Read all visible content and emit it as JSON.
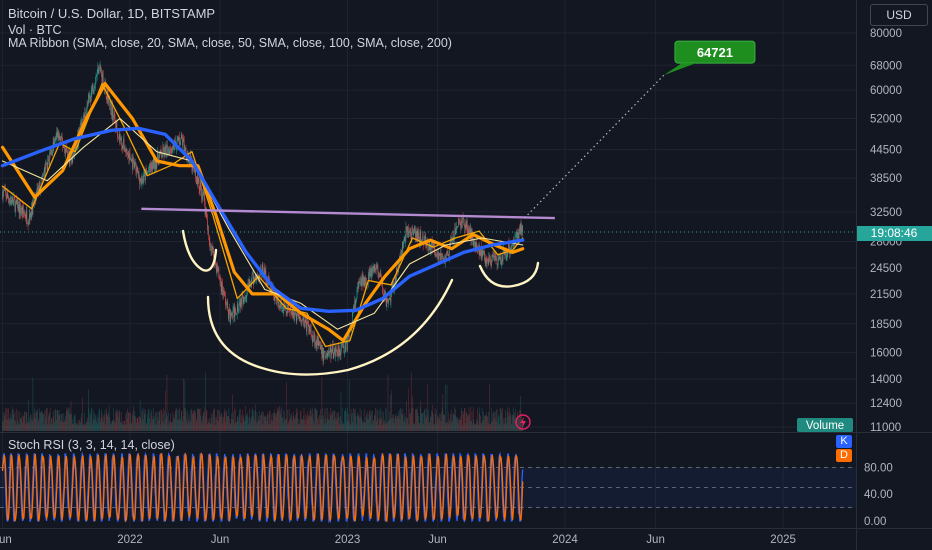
{
  "header": {
    "title": "Bitcoin / U.S. Dollar, 1D, BITSTAMP",
    "volume_label": "Vol · BTC",
    "ma_ribbon_label": "MA Ribbon (SMA, close, 20, SMA, close, 50, SMA, close, 100, SMA, close, 200)"
  },
  "currency_button": "USD",
  "colors": {
    "background": "#131722",
    "candle_up": "#26a69a",
    "candle_down": "#ef5350",
    "ma20": "#f7a600",
    "ma50": "#ff9800",
    "ma100": "#f5e6a0",
    "ma200": "#2962ff",
    "resistance_line": "#b48ad0",
    "drawing": "#fff4c4",
    "target_label": "#1e8e1e",
    "stoch_k": "#2962ff",
    "stoch_d": "#ff6d00",
    "price_badge": "#26a69a"
  },
  "chart_data": [
    {
      "type": "line",
      "subtype": "candlestick",
      "symbol": "Bitcoin / U.S. Dollar",
      "interval": "1D",
      "exchange": "BITSTAMP",
      "y_scale": "log",
      "y_ticks": [
        "80000",
        "68000",
        "60000",
        "52000",
        "44500",
        "38500",
        "32500",
        "28000",
        "24500",
        "21500",
        "18500",
        "16000",
        "14000",
        "12400",
        "11000"
      ],
      "x_ticks": [
        "Jun",
        "2022",
        "Jun",
        "2023",
        "Jun",
        "2024",
        "Jun",
        "2025"
      ],
      "current_price_badge": "19:08:46",
      "target_label": "64721",
      "volume_label": "Volume",
      "series": [
        {
          "name": "Price",
          "x": [
            "2021-06-01",
            "2021-07-15",
            "2021-09-01",
            "2021-09-25",
            "2021-11-10",
            "2021-12-15",
            "2022-01-20",
            "2022-02-20",
            "2022-03-28",
            "2022-05-05",
            "2022-05-12",
            "2022-06-18",
            "2022-07-25",
            "2022-08-12",
            "2022-09-10",
            "2022-10-15",
            "2022-11-09",
            "2022-11-21",
            "2022-12-30",
            "2023-01-20",
            "2023-02-20",
            "2023-03-10",
            "2023-04-10",
            "2023-05-05",
            "2023-06-15",
            "2023-07-05",
            "2023-07-14",
            "2023-08-17",
            "2023-09-11",
            "2023-10-05",
            "2023-10-22"
          ],
          "values": [
            36000,
            31500,
            48000,
            42000,
            68000,
            47000,
            38000,
            43000,
            47000,
            35000,
            29000,
            19000,
            23000,
            24200,
            20000,
            19200,
            17000,
            15800,
            16500,
            22500,
            24500,
            20000,
            29500,
            28500,
            25500,
            30500,
            31000,
            26000,
            25000,
            27800,
            30500
          ]
        },
        {
          "name": "SMA 20",
          "x": [
            "2021-06-01",
            "2021-07-20",
            "2021-09-05",
            "2021-10-01",
            "2021-11-15",
            "2021-12-25",
            "2022-01-30",
            "2022-03-10",
            "2022-04-15",
            "2022-05-20",
            "2022-06-30",
            "2022-08-05",
            "2022-09-20",
            "2022-10-25",
            "2022-11-25",
            "2023-01-05",
            "2023-02-05",
            "2023-03-15",
            "2023-04-20",
            "2023-05-25",
            "2023-07-01",
            "2023-08-10",
            "2023-09-10",
            "2023-10-05",
            "2023-10-22"
          ],
          "values": [
            37000,
            33000,
            46000,
            44000,
            62000,
            49000,
            39000,
            41000,
            44000,
            32000,
            21000,
            23500,
            20000,
            19500,
            16500,
            17000,
            23000,
            22500,
            28500,
            27200,
            28500,
            29500,
            26200,
            26800,
            28500
          ]
        },
        {
          "name": "SMA 50",
          "x": [
            "2021-06-01",
            "2021-07-25",
            "2021-09-10",
            "2021-10-20",
            "2021-11-20",
            "2022-01-05",
            "2022-02-15",
            "2022-03-25",
            "2022-04-25",
            "2022-05-25",
            "2022-06-25",
            "2022-07-25",
            "2022-09-05",
            "2022-10-15",
            "2022-11-30",
            "2022-12-25",
            "2023-01-31",
            "2023-03-05",
            "2023-04-15",
            "2023-05-20",
            "2023-06-25",
            "2023-07-31",
            "2023-09-05",
            "2023-10-05",
            "2023-10-22"
          ],
          "values": [
            45000,
            35000,
            40000,
            52000,
            62000,
            52000,
            42000,
            41000,
            41000,
            32000,
            24000,
            21500,
            21500,
            19500,
            18000,
            17000,
            20500,
            23500,
            27000,
            28200,
            27000,
            29000,
            27500,
            26500,
            27000
          ]
        },
        {
          "name": "SMA 100",
          "x": [
            "2021-06-01",
            "2021-08-15",
            "2021-10-15",
            "2021-12-15",
            "2022-02-15",
            "2022-04-15",
            "2022-06-15",
            "2022-08-15",
            "2022-10-15",
            "2022-12-15",
            "2023-02-15",
            "2023-04-15",
            "2023-06-15",
            "2023-08-15",
            "2023-10-22"
          ],
          "values": [
            42000,
            38000,
            45000,
            52000,
            44000,
            42000,
            30000,
            22000,
            20500,
            18000,
            19500,
            25000,
            27500,
            28500,
            27500
          ]
        },
        {
          "name": "SMA 200",
          "x": [
            "2021-06-01",
            "2021-08-01",
            "2021-10-01",
            "2021-12-01",
            "2022-01-15",
            "2022-03-01",
            "2022-04-15",
            "2022-06-01",
            "2022-07-15",
            "2022-09-01",
            "2022-10-15",
            "2022-12-01",
            "2023-01-15",
            "2023-03-01",
            "2023-04-15",
            "2023-06-01",
            "2023-07-15",
            "2023-09-01",
            "2023-10-22"
          ],
          "values": [
            41000,
            44000,
            47000,
            49000,
            49500,
            48000,
            42000,
            33000,
            26500,
            22000,
            20000,
            19700,
            19800,
            21000,
            23500,
            25000,
            26500,
            27500,
            28200
          ]
        }
      ],
      "annotations": {
        "resistance_line": {
          "x": [
            "2022-01-20",
            "2023-12-15"
          ],
          "values": [
            33000,
            31500
          ]
        },
        "projection_line": {
          "x": [
            "2023-10-25",
            "2024-06-15"
          ],
          "values": [
            31500,
            64721
          ]
        }
      }
    },
    {
      "type": "line",
      "title": "Stoch RSI (3, 3, 14, 14, close)",
      "y_ticks": [
        "80.00",
        "40.00",
        "0.00"
      ],
      "ylim": [
        0,
        100
      ],
      "levels": [
        80,
        50,
        20
      ],
      "legend": [
        "K",
        "D"
      ]
    }
  ]
}
